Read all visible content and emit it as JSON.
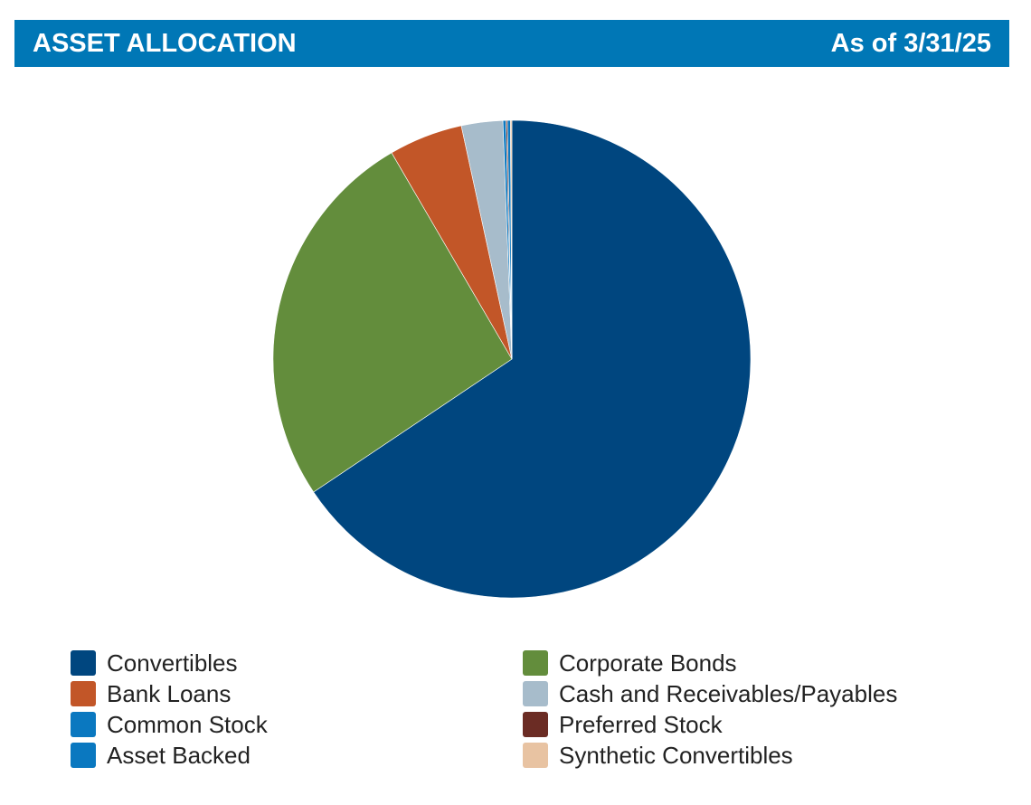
{
  "header": {
    "title": "ASSET ALLOCATION",
    "as_of": "As of 3/31/25",
    "bg_color": "#0077b6"
  },
  "chart_data": {
    "type": "pie",
    "title": "ASSET ALLOCATION",
    "start_angle_deg": 0,
    "direction": "clockwise",
    "legend_position": "bottom",
    "slices": [
      {
        "label": "Convertibles",
        "value": 65.6,
        "color": "#00467f"
      },
      {
        "label": "Corporate Bonds",
        "value": 26.0,
        "color": "#638d3c"
      },
      {
        "label": "Bank Loans",
        "value": 5.0,
        "color": "#c25628"
      },
      {
        "label": "Cash and Receivables/Payables",
        "value": 2.8,
        "color": "#a7bccb"
      },
      {
        "label": "Common Stock",
        "value": 0.2,
        "color": "#0a78c0"
      },
      {
        "label": "Preferred Stock",
        "value": 0.1,
        "color": "#6b2c24"
      },
      {
        "label": "Asset Backed",
        "value": 0.2,
        "color": "#0a78c0"
      },
      {
        "label": "Synthetic Convertibles",
        "value": 0.1,
        "color": "#e8c3a2"
      }
    ],
    "legend_order": [
      "Convertibles",
      "Corporate Bonds",
      "Bank Loans",
      "Cash and Receivables/Payables",
      "Common Stock",
      "Preferred Stock",
      "Asset Backed",
      "Synthetic Convertibles"
    ]
  }
}
